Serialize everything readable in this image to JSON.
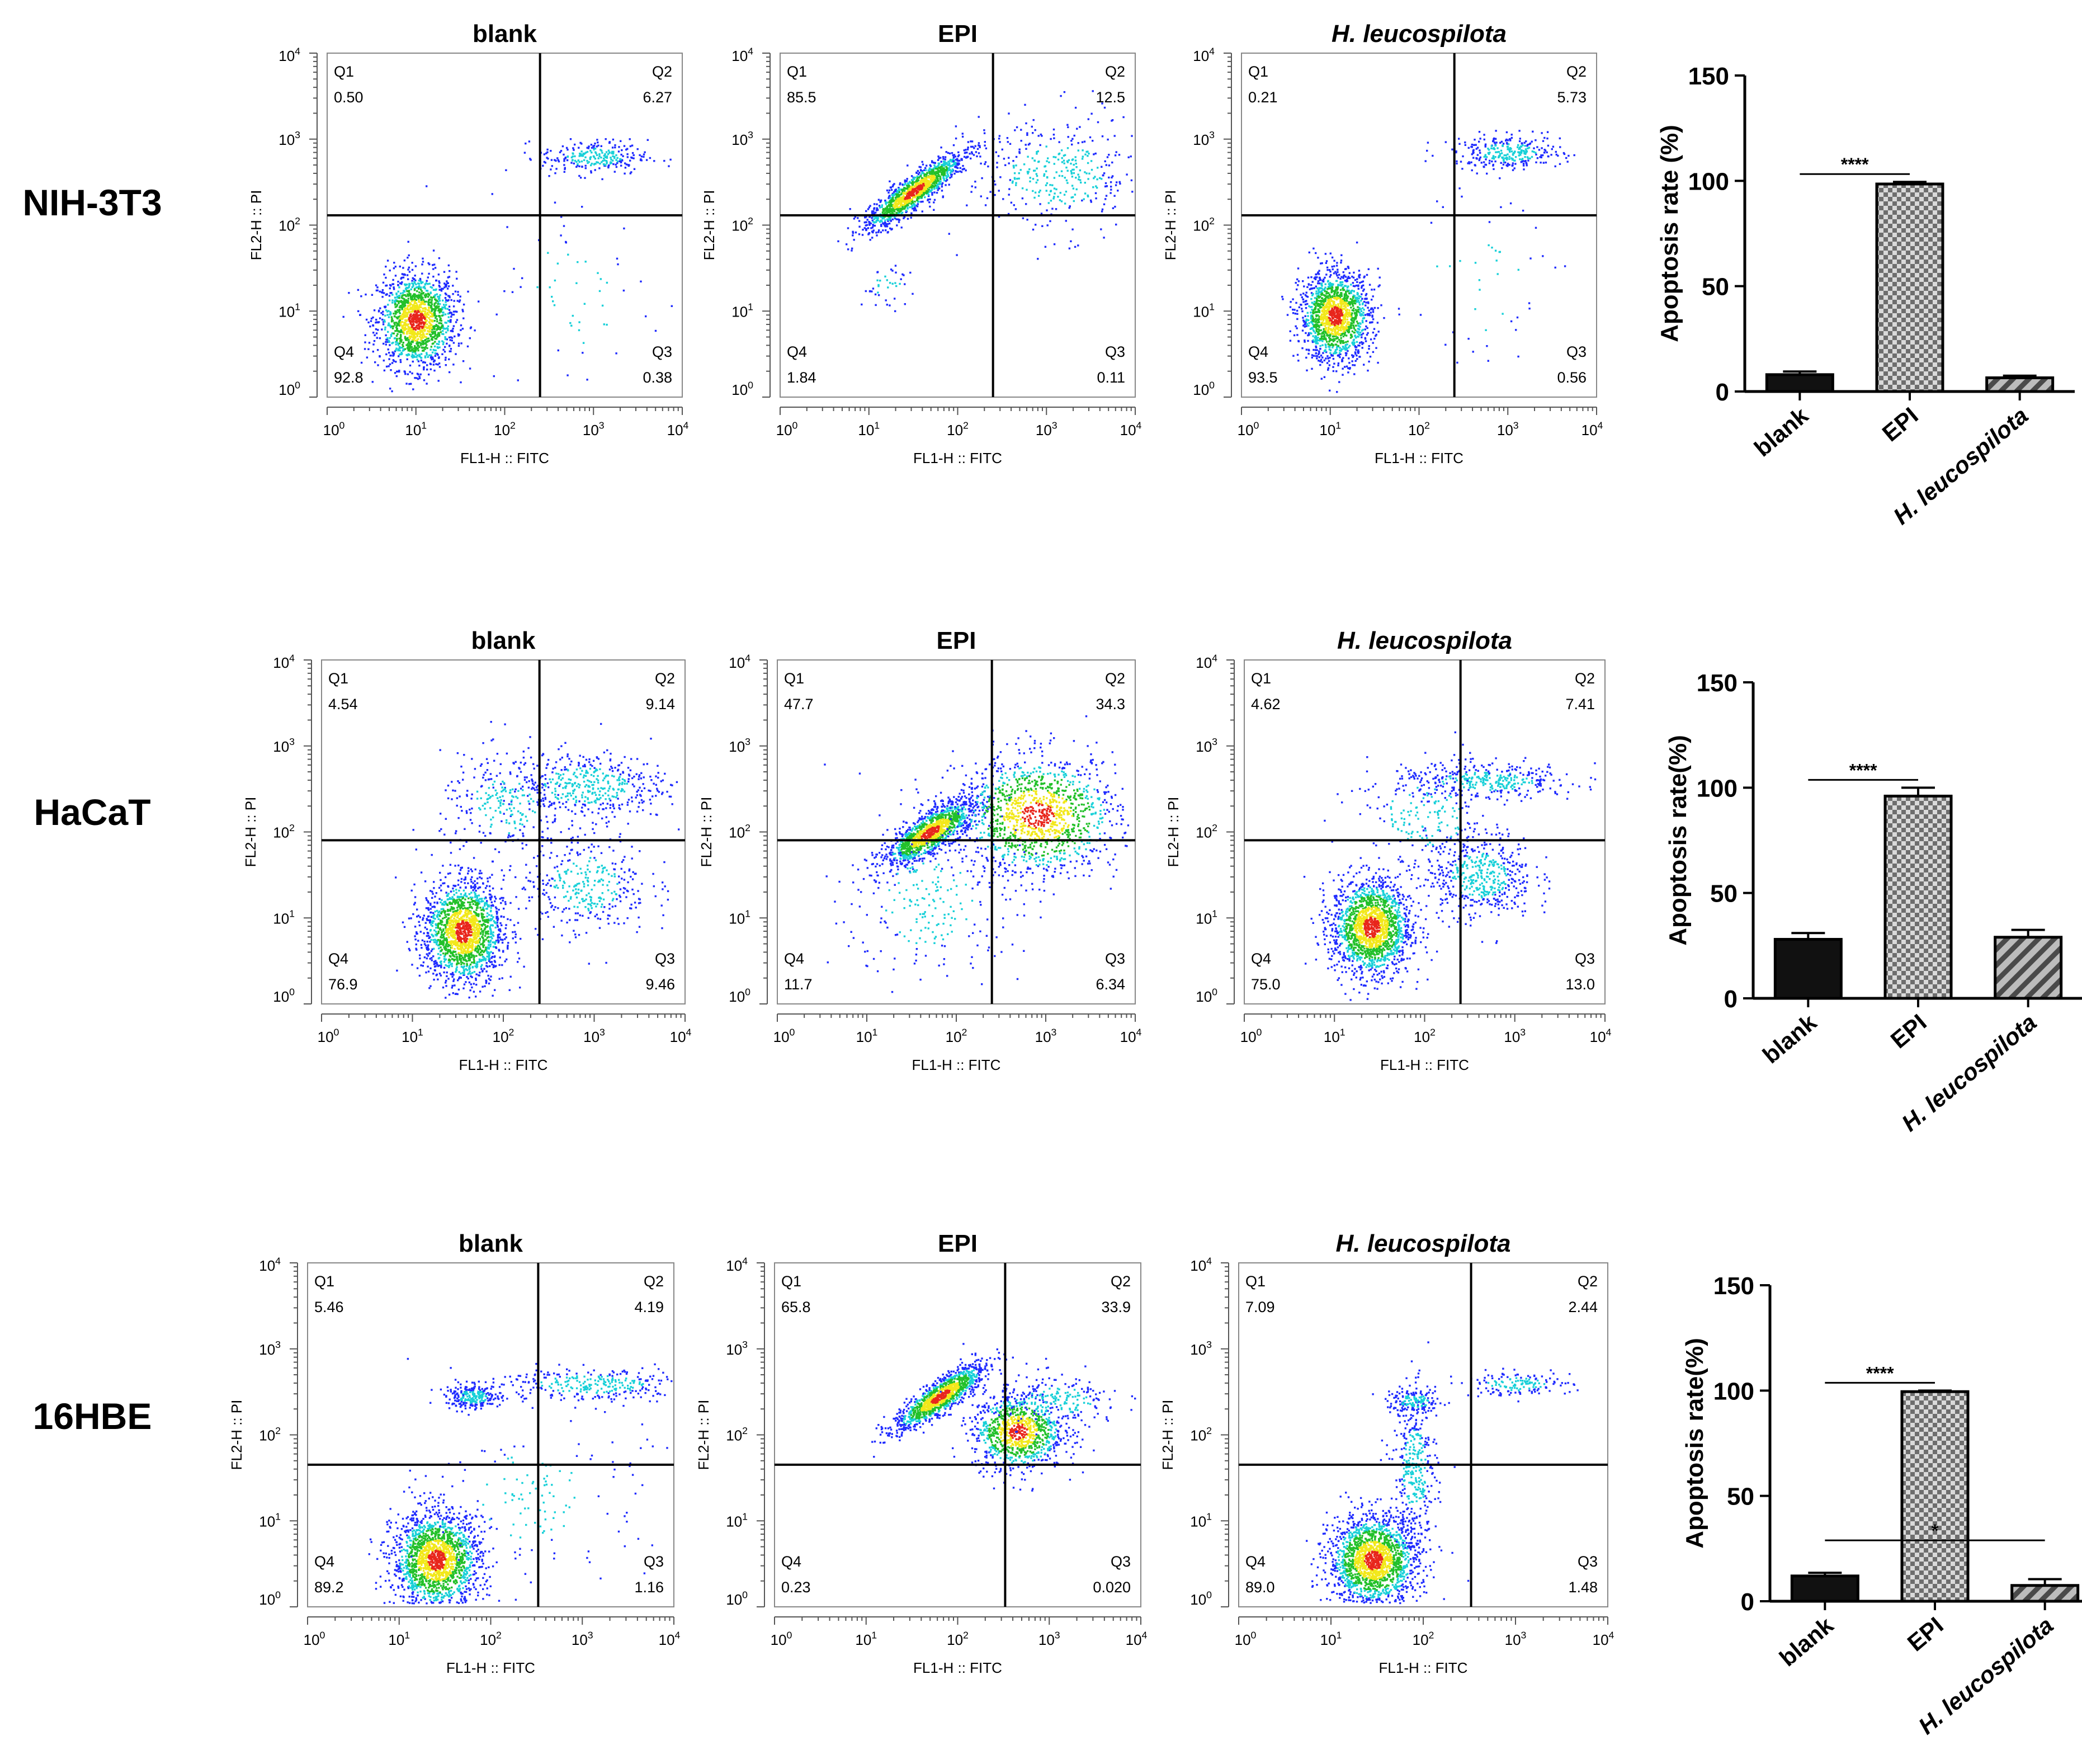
{
  "chart_data": {
    "type": "scatter",
    "description_free": true,
    "flow_axes": {
      "x_label": "FL1-H :: FITC",
      "y_label": "FL2-H :: PI",
      "tick_base": "10",
      "tick_exponents": [
        "0",
        "1",
        "2",
        "3",
        "4"
      ],
      "scale": "log",
      "range": [
        1,
        10000
      ]
    },
    "quadrant_labels": [
      "Q1",
      "Q2",
      "Q3",
      "Q4"
    ],
    "bar_axis": {
      "ticks": [
        "0",
        "50",
        "100",
        "150"
      ],
      "ylim": [
        0,
        150
      ],
      "categories": [
        "blank",
        "EPI",
        "H. leucospilota"
      ],
      "patterns": [
        "solid",
        "checker",
        "hatch"
      ]
    },
    "rows": [
      {
        "cell_line": "NIH-3T3",
        "ylabel": "Apoptosis rate (%)",
        "panels": [
          {
            "title": "blank",
            "italic": false,
            "q1": "0.50",
            "q2": "6.27",
            "q3": "0.38",
            "q4": "92.8",
            "gate_x": 250,
            "gate_y": 130
          },
          {
            "title": "EPI",
            "italic": false,
            "q1": "85.5",
            "q2": "12.5",
            "q3": "0.11",
            "q4": "1.84",
            "gate_x": 250,
            "gate_y": 130
          },
          {
            "title": "H. leucospilota",
            "italic": true,
            "q1": "0.21",
            "q2": "5.73",
            "q3": "0.56",
            "q4": "93.5",
            "gate_x": 250,
            "gate_y": 130
          }
        ],
        "bars": {
          "values": [
            8,
            98.5,
            6.5
          ],
          "errors": [
            1.5,
            1,
            1
          ]
        },
        "significance": [
          {
            "from": 0,
            "to": 1,
            "label": "****"
          }
        ]
      },
      {
        "cell_line": "HaCaT",
        "ylabel": "Apoptosis rate(%)",
        "panels": [
          {
            "title": "blank",
            "italic": false,
            "q1": "4.54",
            "q2": "9.14",
            "q3": "9.46",
            "q4": "76.9",
            "gate_x": 250,
            "gate_y": 80
          },
          {
            "title": "EPI",
            "italic": false,
            "q1": "47.7",
            "q2": "34.3",
            "q3": "6.34",
            "q4": "11.7",
            "gate_x": 250,
            "gate_y": 80
          },
          {
            "title": "H. leucospilota",
            "italic": true,
            "q1": "4.62",
            "q2": "7.41",
            "q3": "13.0",
            "q4": "75.0",
            "gate_x": 250,
            "gate_y": 80
          }
        ],
        "bars": {
          "values": [
            28,
            96,
            29
          ],
          "errors": [
            3,
            4,
            3.5
          ]
        },
        "significance": [
          {
            "from": 0,
            "to": 1,
            "label": "****"
          }
        ]
      },
      {
        "cell_line": "16HBE",
        "ylabel": "Apoptosis rate(%)",
        "panels": [
          {
            "title": "blank",
            "italic": false,
            "q1": "5.46",
            "q2": "4.19",
            "q3": "1.16",
            "q4": "89.2",
            "gate_x": 330,
            "gate_y": 45
          },
          {
            "title": "EPI",
            "italic": false,
            "q1": "65.8",
            "q2": "33.9",
            "q3": "0.020",
            "q4": "0.23",
            "gate_x": 330,
            "gate_y": 45
          },
          {
            "title": "H. leucospilota",
            "italic": true,
            "q1": "7.09",
            "q2": "2.44",
            "q3": "1.48",
            "q4": "89.0",
            "gate_x": 330,
            "gate_y": 45
          }
        ],
        "bars": {
          "values": [
            12,
            99.5,
            7.5
          ],
          "errors": [
            1.5,
            0.5,
            3
          ]
        },
        "significance": [
          {
            "from": 0,
            "to": 1,
            "label": "****"
          },
          {
            "from": 0,
            "to": 2,
            "label": "*"
          }
        ]
      }
    ]
  },
  "colors": {
    "ink": "#000000",
    "bar_dark": "#111111",
    "bar_gray": "#888888",
    "dot_blue": "#1f2bff",
    "dot_cyan": "#18d0d8",
    "dot_green": "#22c02a",
    "dot_yellow": "#f2e81a",
    "dot_red": "#e8261c"
  }
}
